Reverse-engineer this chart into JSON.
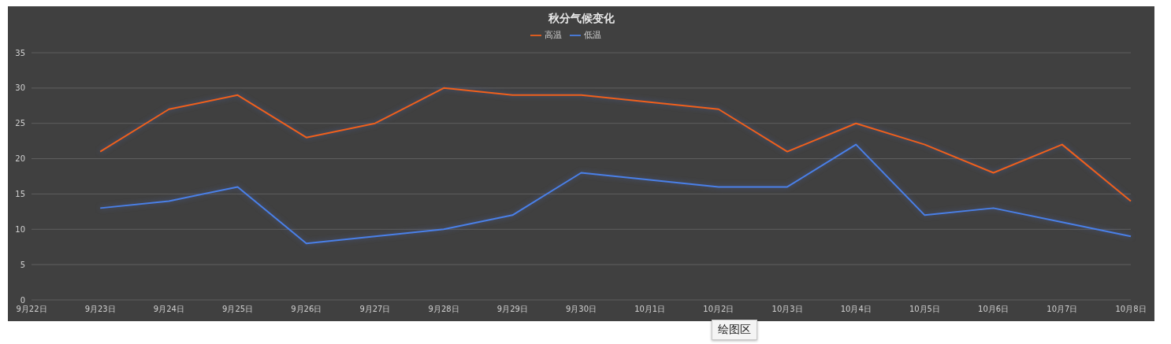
{
  "chart_data": {
    "type": "line",
    "title": "秋分气候变化",
    "categories": [
      "9月22日",
      "9月23日",
      "9月24日",
      "9月25日",
      "9月26日",
      "9月27日",
      "9月28日",
      "9月29日",
      "9月30日",
      "10月1日",
      "10月2日",
      "10月3日",
      "10月4日",
      "10月5日",
      "10月6日",
      "10月7日",
      "10月8日"
    ],
    "series": [
      {
        "name": "高温",
        "color": "#f0601c",
        "values": [
          null,
          21,
          27,
          29,
          23,
          25,
          30,
          29,
          29,
          28,
          27,
          21,
          25,
          22,
          18,
          22,
          14
        ]
      },
      {
        "name": "低温",
        "color": "#4a80e8",
        "values": [
          null,
          13,
          14,
          16,
          8,
          9,
          10,
          12,
          18,
          17,
          16,
          16,
          22,
          12,
          13,
          11,
          9
        ]
      }
    ],
    "ylim": [
      0,
      35
    ],
    "yticks": [
      0,
      5,
      10,
      15,
      20,
      25,
      30,
      35
    ],
    "grid": "y",
    "legend": "top",
    "marker": "none",
    "line_style": "solid",
    "annotations": [
      "绘图区"
    ]
  }
}
